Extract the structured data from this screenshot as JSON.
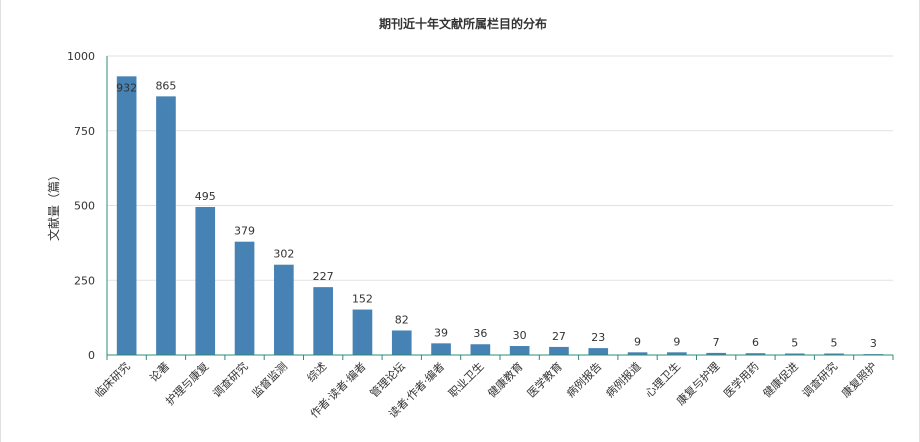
{
  "chart_data": {
    "type": "bar",
    "title": "期刊近十年文献所属栏目的分布",
    "ylabel": "文献量（篇）",
    "xlabel": "",
    "ylim": [
      0,
      1000
    ],
    "yticks": [
      0,
      250,
      500,
      750,
      1000
    ],
    "grid": true,
    "bar_color": "#4682b4",
    "axis_color": "#2e8b7a",
    "categories": [
      "临床研究",
      "论著",
      "护理与康复",
      "调查研究",
      "监督监测",
      "综述",
      "作者·读者·编者",
      "管理论坛",
      "读者·作者·编者",
      "职业卫生",
      "健康教育",
      "医学教育",
      "病例报告",
      "病例报道",
      "心理卫生",
      "康复与护理",
      "医学用药",
      "健康促进",
      "调查研究",
      "康复照护"
    ],
    "values": [
      932,
      865,
      495,
      379,
      302,
      227,
      152,
      82,
      39,
      36,
      30,
      27,
      23,
      9,
      9,
      7,
      6,
      5,
      5,
      3
    ]
  }
}
